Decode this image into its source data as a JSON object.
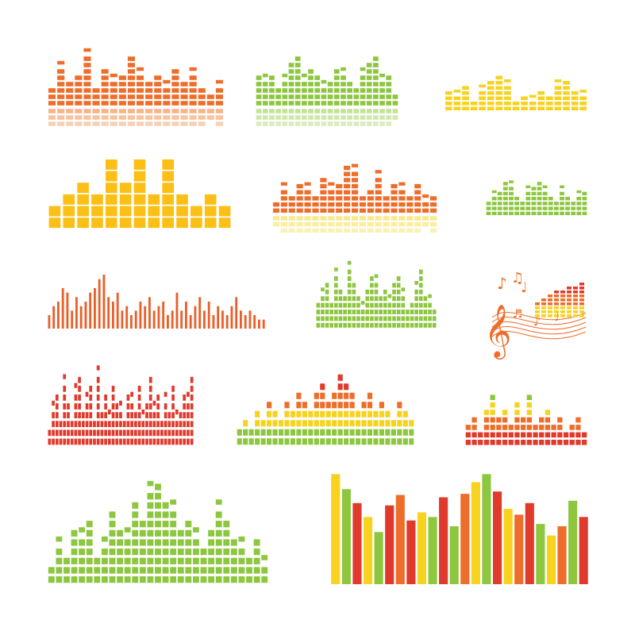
{
  "colors": {
    "orange": "#ee6d2a",
    "orange_light": "#f6b68c",
    "green": "#8dc63f",
    "green_light": "#c6e29a",
    "yellow": "#f7d21e",
    "yellow_light": "#fbe98a",
    "gold": "#fbbf15",
    "red": "#e03a2c",
    "dark_orange": "#e8602a"
  },
  "equalizers": [
    {
      "name": "eq-orange-mirrored",
      "style": "segmented",
      "color": "orange",
      "reflection_color": "orange_light",
      "reflection_levels": 3,
      "levels": [
        3,
        6,
        4,
        5,
        8,
        3,
        6,
        4,
        5,
        8,
        5,
        4,
        5,
        3,
        6,
        4,
        5,
        3,
        2,
        3
      ],
      "peaks": true
    },
    {
      "name": "eq-green-mirrored",
      "style": "segmented",
      "color": "green",
      "reflection_color": "green_light",
      "reflection_levels": 5,
      "levels": [
        5,
        4,
        5,
        3,
        4,
        7,
        8,
        4,
        6,
        5,
        3,
        4,
        6,
        5,
        4,
        3,
        5,
        7,
        8,
        4,
        5,
        2
      ],
      "peaks": true
    },
    {
      "name": "eq-yellow-small",
      "style": "segmented",
      "color": "yellow",
      "levels": [
        4,
        3,
        5,
        2,
        4,
        6,
        7,
        5,
        2,
        3,
        2,
        4,
        3,
        5,
        6,
        4,
        3
      ],
      "peaks": true
    },
    {
      "name": "eq-gold-blocks",
      "style": "blocks",
      "color": "gold",
      "levels": [
        2,
        3,
        4,
        3,
        6,
        4,
        6,
        3,
        6,
        3,
        2,
        3,
        2
      ],
      "peaks": false
    },
    {
      "name": "eq-orange-reflected",
      "style": "segmented",
      "color": "orange",
      "reflection_color": "yellow_light",
      "reflection_levels": 3,
      "levels": [
        2,
        4,
        3,
        5,
        4,
        3,
        6,
        4,
        5,
        8,
        7,
        3,
        4,
        6,
        3,
        5,
        4,
        3,
        5,
        2,
        3
      ],
      "peaks": true
    },
    {
      "name": "eq-green-small",
      "style": "segmented",
      "color": "green",
      "levels": [
        3,
        4,
        5,
        7,
        6,
        4,
        3,
        5,
        6,
        7,
        5,
        4,
        3,
        5,
        4,
        3,
        4,
        5
      ],
      "peaks": true
    },
    {
      "name": "eq-orange-thin-bars",
      "style": "solid",
      "color": "dark_orange",
      "levels": [
        3,
        5,
        6,
        9,
        8,
        4,
        7,
        5,
        6,
        8,
        9,
        11,
        12,
        7,
        6,
        8,
        4,
        5,
        3,
        4,
        6,
        5,
        7,
        4,
        5,
        6,
        3,
        4,
        8,
        4,
        6,
        3,
        5,
        7,
        4,
        6,
        3,
        5,
        4,
        3,
        5,
        7,
        4,
        3,
        4,
        3,
        2,
        2
      ],
      "peaks": false
    },
    {
      "name": "eq-green-mid",
      "style": "segmented",
      "color": "green",
      "levels": [
        4,
        5,
        7,
        4,
        8,
        6,
        5,
        9,
        7,
        5,
        3,
        6,
        8,
        7,
        5,
        6,
        4,
        7,
        8,
        5,
        3,
        4,
        6,
        9,
        5,
        4,
        3
      ],
      "peaks": true
    },
    {
      "name": "eq-red-segmented",
      "style": "segmented",
      "color": "red",
      "levels": [
        2,
        4,
        6,
        3,
        7,
        5,
        3,
        6,
        8,
        4,
        5,
        7,
        3,
        8,
        4,
        6,
        3,
        7,
        5,
        4,
        3,
        6,
        5,
        4,
        7,
        3,
        5,
        8,
        4,
        6,
        3,
        5,
        4,
        7,
        3,
        4,
        6,
        5,
        8
      ],
      "peaks": true
    },
    {
      "name": "eq-multicolor",
      "style": "gradient-seg",
      "colors": [
        "green",
        "yellow",
        "orange",
        "red"
      ],
      "levels": [
        2,
        3,
        2,
        4,
        3,
        5,
        4,
        3,
        5,
        4,
        6,
        5,
        4,
        6,
        7,
        5,
        6,
        8,
        7,
        6,
        4,
        5,
        6,
        4,
        5,
        4,
        3,
        5,
        4,
        3
      ],
      "peaks": false
    },
    {
      "name": "eq-multicolor-small",
      "style": "gradient-seg",
      "colors": [
        "red",
        "orange",
        "yellow",
        "green"
      ],
      "levels": [
        3,
        4,
        2,
        5,
        7,
        4,
        5,
        3,
        6,
        4,
        7,
        3,
        4,
        5,
        3,
        4,
        2,
        3,
        4,
        2
      ],
      "peaks": false
    },
    {
      "name": "eq-green-large",
      "style": "segmented",
      "color": "green",
      "levels": [
        2,
        4,
        3,
        6,
        5,
        7,
        3,
        4,
        8,
        6,
        5,
        9,
        7,
        10,
        11,
        9,
        8,
        6,
        7,
        5,
        4,
        6,
        8,
        7,
        5,
        4,
        3,
        5,
        2
      ],
      "peaks": true
    },
    {
      "name": "eq-colorful-tall-bars",
      "style": "tall-bars",
      "levels": [
        95,
        82,
        70,
        58,
        45,
        68,
        77,
        55,
        62,
        58,
        75,
        50,
        78,
        88,
        95,
        80,
        65,
        60,
        70,
        52,
        42,
        50,
        72,
        58
      ],
      "bar_colors": [
        "yellow",
        "green",
        "red",
        "yellow",
        "green",
        "red",
        "orange",
        "red",
        "yellow",
        "green",
        "red",
        "green",
        "orange",
        "yellow",
        "green",
        "red",
        "yellow",
        "orange",
        "red",
        "green",
        "yellow",
        "orange",
        "green",
        "red"
      ],
      "peaks": false
    }
  ],
  "music_symbol": {
    "glyphs": [
      "♪",
      "♫",
      "♩",
      "♬"
    ],
    "clef": "𝄞"
  }
}
